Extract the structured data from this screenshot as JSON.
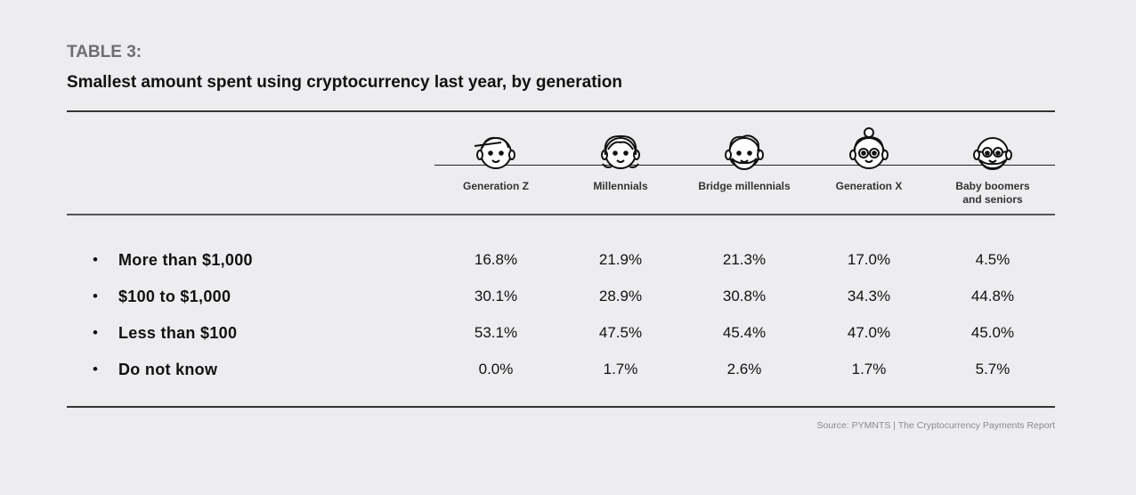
{
  "label": "TABLE 3:",
  "title": "Smallest amount spent using cryptocurrency last year, by generation",
  "columns": [
    {
      "label": "Generation Z",
      "icon": "gen-z-face-icon"
    },
    {
      "label": "Millennials",
      "icon": "millennial-face-icon"
    },
    {
      "label": "Bridge millennials",
      "icon": "bridge-millennial-face-icon"
    },
    {
      "label": "Generation X",
      "icon": "gen-x-face-icon"
    },
    {
      "label": "Baby boomers\nand seniors",
      "icon": "boomer-face-icon"
    }
  ],
  "rows": [
    {
      "label": "More than $1,000",
      "values": [
        "16.8%",
        "21.9%",
        "21.3%",
        "17.0%",
        "4.5%"
      ]
    },
    {
      "label": "$100 to $1,000",
      "values": [
        "30.1%",
        "28.9%",
        "30.8%",
        "34.3%",
        "44.8%"
      ]
    },
    {
      "label": "Less than $100",
      "values": [
        "53.1%",
        "47.5%",
        "45.4%",
        "47.0%",
        "45.0%"
      ]
    },
    {
      "label": "Do not know",
      "values": [
        "0.0%",
        "1.7%",
        "2.6%",
        "1.7%",
        "5.7%"
      ]
    }
  ],
  "bullet": "•",
  "source": "Source: PYMNTS | The Cryptocurrency Payments Report"
}
